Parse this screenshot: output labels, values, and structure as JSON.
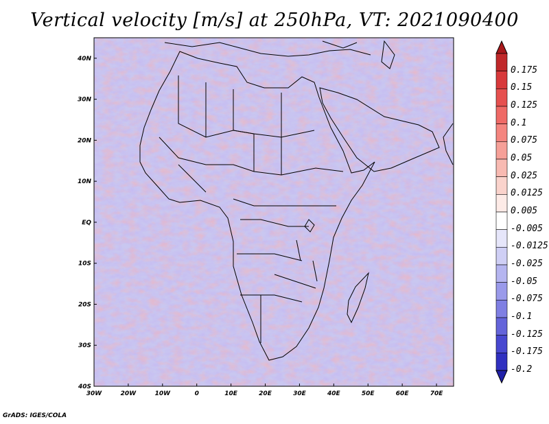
{
  "title": "Vertical velocity [m/s] at 250hPa, VT: 2021090400",
  "credit": "GrADS: IGES/COLA",
  "map": {
    "region": "Africa",
    "lon_range": [
      -30,
      75
    ],
    "lat_range": [
      -40,
      45
    ],
    "x_ticks": [
      {
        "lon": -30,
        "label": "30W"
      },
      {
        "lon": -20,
        "label": "20W"
      },
      {
        "lon": -10,
        "label": "10W"
      },
      {
        "lon": 0,
        "label": "0"
      },
      {
        "lon": 10,
        "label": "10E"
      },
      {
        "lon": 20,
        "label": "20E"
      },
      {
        "lon": 30,
        "label": "30E"
      },
      {
        "lon": 40,
        "label": "40E"
      },
      {
        "lon": 50,
        "label": "50E"
      },
      {
        "lon": 60,
        "label": "60E"
      },
      {
        "lon": 70,
        "label": "70E"
      }
    ],
    "y_ticks": [
      {
        "lat": 40,
        "label": "40N"
      },
      {
        "lat": 30,
        "label": "30N"
      },
      {
        "lat": 20,
        "label": "20N"
      },
      {
        "lat": 10,
        "label": "10N"
      },
      {
        "lat": 0,
        "label": "EQ"
      },
      {
        "lat": -10,
        "label": "10S"
      },
      {
        "lat": -20,
        "label": "20S"
      },
      {
        "lat": -30,
        "label": "30S"
      },
      {
        "lat": -40,
        "label": "40S"
      }
    ]
  },
  "colorbar": {
    "levels": [
      {
        "label": "0.175",
        "color": "#c0282a"
      },
      {
        "label": "0.15",
        "color": "#d8393b"
      },
      {
        "label": "0.125",
        "color": "#e6504f"
      },
      {
        "label": "0.1",
        "color": "#ef6a66"
      },
      {
        "label": "0.075",
        "color": "#f4857f"
      },
      {
        "label": "0.05",
        "color": "#f6a098"
      },
      {
        "label": "0.025",
        "color": "#f8bab2"
      },
      {
        "label": "0.0125",
        "color": "#fad3cc"
      },
      {
        "label": "0.005",
        "color": "#fdebe7"
      },
      {
        "label": "-0.005",
        "color": "#ffffff"
      },
      {
        "label": "-0.0125",
        "color": "#e6e6fa"
      },
      {
        "label": "-0.025",
        "color": "#cfcff5"
      },
      {
        "label": "-0.05",
        "color": "#b5b5f0"
      },
      {
        "label": "-0.075",
        "color": "#9a9aea"
      },
      {
        "label": "-0.1",
        "color": "#7f7fe3"
      },
      {
        "label": "-0.125",
        "color": "#6464da"
      },
      {
        "label": "-0.175",
        "color": "#4848d0"
      },
      {
        "label": "-0.2",
        "color": "#3030c0"
      }
    ],
    "over_color": "#a8181b",
    "under_color": "#2020a8"
  }
}
